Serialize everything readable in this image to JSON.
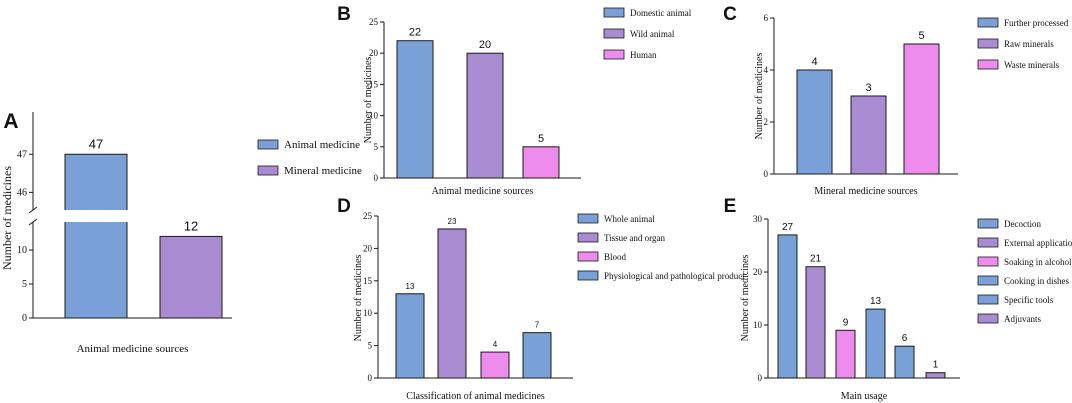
{
  "colors": {
    "blue": "#7aa0d8",
    "purple": "#a98bd2",
    "pink": "#ee8cee",
    "stroke": "#1a1a1a"
  },
  "chart_data": [
    {
      "panel": "A",
      "type": "bar",
      "broken_axis": true,
      "categories": [
        "Animal medicine",
        "Mineral medicine"
      ],
      "values": [
        47,
        12
      ],
      "data_labels": [
        "47",
        "12"
      ],
      "colors": [
        "blue",
        "purple"
      ],
      "legend": [
        "Animal medicine",
        "Mineral medicine"
      ],
      "xlabel": "Animal medicine sources",
      "ylabel": "Number of medicines",
      "upper_ticks": [
        "47",
        "46"
      ],
      "upper_tick_values": [
        47,
        46
      ],
      "upper_ylim": [
        45.8,
        47.9
      ],
      "lower_ticks": [
        "0",
        "5",
        "10"
      ],
      "lower_tick_values": [
        0,
        5,
        10
      ],
      "lower_ylim": [
        0,
        12.5
      ],
      "legend_position": "right"
    },
    {
      "panel": "B",
      "type": "bar",
      "categories": [
        "Domestic animal",
        "Wild animal",
        "Human"
      ],
      "values": [
        22,
        20,
        5
      ],
      "data_labels": [
        "22",
        "20",
        "5"
      ],
      "colors": [
        "blue",
        "purple",
        "pink"
      ],
      "legend": [
        "Domestic animal",
        "Wild animal",
        "Human"
      ],
      "xlabel": "Animal medicine sources",
      "ylabel": "Number of medicines",
      "ylim": [
        0,
        25
      ],
      "ticks": [
        "0",
        "5",
        "10",
        "15",
        "20",
        "25"
      ],
      "tick_values": [
        0,
        5,
        10,
        15,
        20,
        25
      ],
      "legend_position": "top-right"
    },
    {
      "panel": "C",
      "type": "bar",
      "categories": [
        "Further processed",
        "Raw minerals",
        "Waste minerals"
      ],
      "values": [
        4,
        3,
        5
      ],
      "data_labels": [
        "4",
        "3",
        "5"
      ],
      "colors": [
        "blue",
        "purple",
        "pink"
      ],
      "legend": [
        "Further processed",
        "Raw minerals",
        "Waste minerals"
      ],
      "xlabel": "Mineral medicine sources",
      "ylabel": "Number of medicines",
      "ylim": [
        0,
        6
      ],
      "ticks": [
        "0",
        "2",
        "4",
        "6"
      ],
      "tick_values": [
        0,
        2,
        4,
        6
      ],
      "legend_position": "top-right"
    },
    {
      "panel": "D",
      "type": "bar",
      "categories": [
        "Whole animal",
        "Tissue and organ",
        "Blood",
        "Physiological and pathological product"
      ],
      "values": [
        13,
        23,
        4,
        7
      ],
      "data_labels": [
        "13",
        "23",
        "4",
        "7"
      ],
      "colors": [
        "blue",
        "purple",
        "pink",
        "blue"
      ],
      "legend": [
        "Whole animal",
        "Tissue and organ",
        "Blood",
        "Physiological and pathological product"
      ],
      "xlabel": "Classification of animal medicines",
      "ylabel": "Number of medicines",
      "ylim": [
        0,
        25
      ],
      "ticks": [
        "0",
        "5",
        "10",
        "15",
        "20",
        "25"
      ],
      "tick_values": [
        0,
        5,
        10,
        15,
        20,
        25
      ],
      "legend_position": "top-right"
    },
    {
      "panel": "E",
      "type": "bar",
      "categories": [
        "Decoction",
        "External application",
        "Soaking in alcohol",
        "Cooking in dishes",
        "Specific tools",
        "Adjuvants"
      ],
      "values": [
        27,
        21,
        9,
        13,
        6,
        1
      ],
      "data_labels": [
        "27",
        "21",
        "9",
        "13",
        "6",
        "1"
      ],
      "colors": [
        "blue",
        "purple",
        "pink",
        "blue",
        "blue",
        "purple"
      ],
      "legend": [
        "Decoction",
        "External application",
        "Soaking in alcohol",
        "Cooking in dishes",
        "Specific tools",
        "Adjuvants"
      ],
      "xlabel": "Main usage",
      "ylabel": "Number of medicines",
      "ylim": [
        0,
        30
      ],
      "ticks": [
        "0",
        "10",
        "20",
        "30"
      ],
      "tick_values": [
        0,
        10,
        20,
        30
      ],
      "legend_position": "top-right"
    }
  ]
}
